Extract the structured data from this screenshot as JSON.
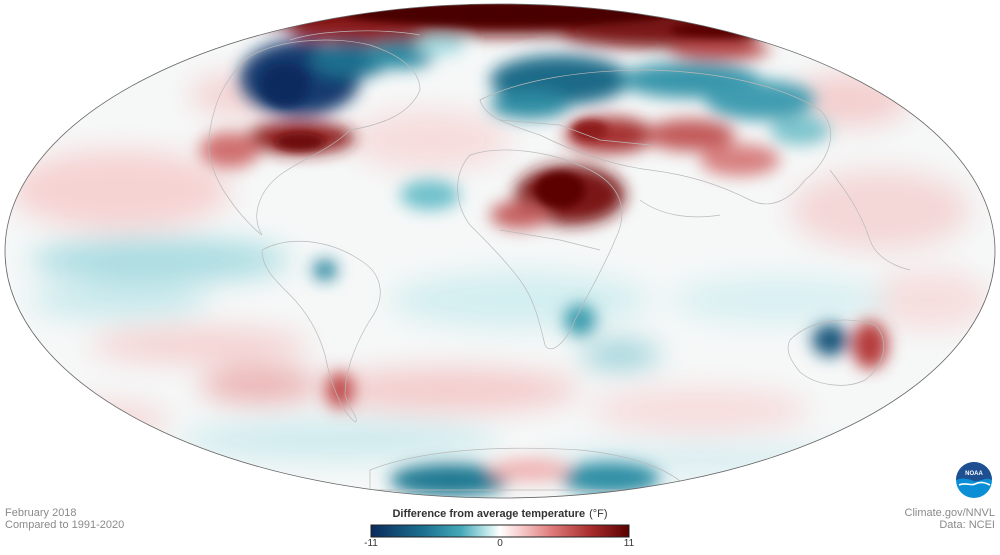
{
  "caption": {
    "date": "February 2018",
    "baseline": "Compared to 1991-2020"
  },
  "credits": {
    "site": "Climate.gov/NNVL",
    "data_source": "Data: NCEI"
  },
  "legend": {
    "title": "Difference from average temperature",
    "unit": "(°F)",
    "min_label": "-11",
    "mid_label": "0",
    "max_label": "11",
    "range": [
      -11,
      11
    ],
    "colors": [
      "#0b2a5c",
      "#1b6f8f",
      "#45a9b8",
      "#bfe7ea",
      "#ffffff",
      "#f7cccc",
      "#df7b7b",
      "#a92d2d",
      "#5a0000"
    ]
  },
  "logo": {
    "text": "NOAA",
    "colors": [
      "#1d4f91",
      "#0a8fd6"
    ]
  },
  "map": {
    "projection": "Mollweide",
    "ocean_base_color": "#f4f9fa",
    "border_color": "#b9b9b9",
    "outline_color": "#666666"
  }
}
